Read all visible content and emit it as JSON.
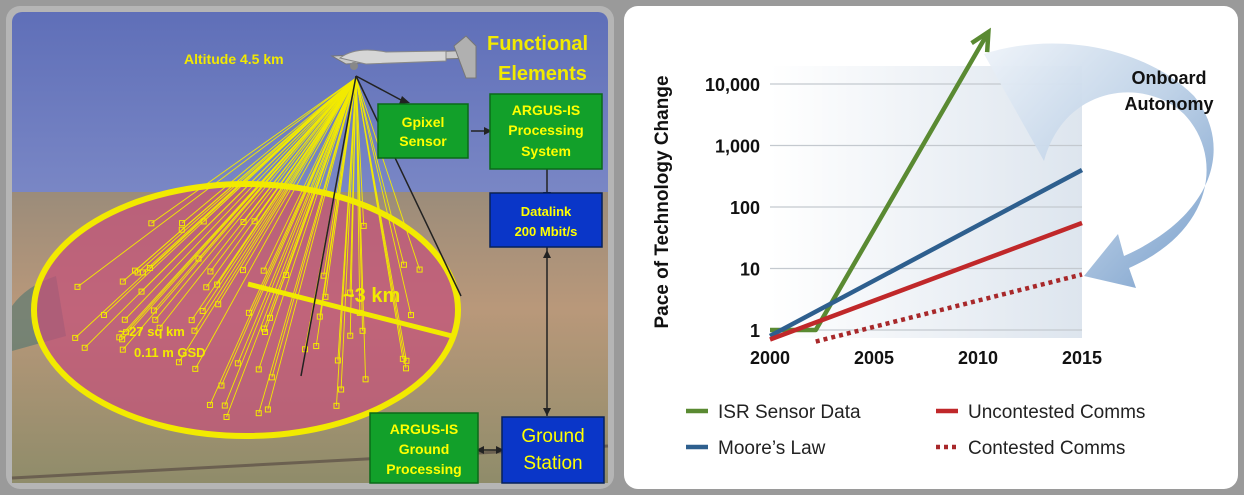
{
  "left": {
    "altitude_label": "Altitude 4.5 km",
    "functional_elements_line1": "Functional",
    "functional_elements_line2": "Elements",
    "gpixel_line1": "Gpixel",
    "gpixel_line2": "Sensor",
    "argus_processing_line1": "ARGUS-IS",
    "argus_processing_line2": "Processing",
    "argus_processing_line3": "System",
    "datalink_line1": "Datalink",
    "datalink_line2": "200 Mbit/s",
    "ground_processing_line1": "ARGUS-IS",
    "ground_processing_line2": "Ground",
    "ground_processing_line3": "Processing",
    "ground_station_line1": "Ground",
    "ground_station_line2": "Station",
    "radius_label": "~3 km",
    "area_label": "~ 27 sq km",
    "gsd_label": "0.11 m GSD",
    "colors": {
      "sky": "#6f7fc0",
      "ground": "#b99a7a",
      "coverage": "#c4507a",
      "ellipse": "#f2ea00",
      "green_box": "#12a02a",
      "blue_box": "#0a36c8"
    }
  },
  "chart_data": {
    "type": "line",
    "ylabel": "Pace of Technology Change",
    "xlabel": "",
    "y_scale": "log",
    "x_ticks": [
      "2000",
      "2005",
      "2010",
      "2015"
    ],
    "y_ticks": [
      "1",
      "10",
      "100",
      "1,000",
      "10,000"
    ],
    "xlim": [
      2000,
      2015
    ],
    "grid": true,
    "legend_position": "bottom",
    "annotation": "Onboard Autonomy",
    "series": [
      {
        "name": "ISR Sensor Data",
        "color": "#5a8a32",
        "style": "solid",
        "arrow": true,
        "x": [
          2000,
          2002.2,
          2010.5
        ],
        "y": [
          1,
          1,
          70000
        ]
      },
      {
        "name": "Moore’s Law",
        "color": "#2e5f8e",
        "style": "solid",
        "x": [
          2000,
          2015
        ],
        "y": [
          0.8,
          400
        ]
      },
      {
        "name": "Uncontested Comms",
        "color": "#c0282a",
        "style": "solid",
        "x": [
          2000,
          2015
        ],
        "y": [
          0.7,
          55
        ]
      },
      {
        "name": "Contested Comms",
        "color": "#a8282a",
        "style": "dotted",
        "x": [
          2002.2,
          2015
        ],
        "y": [
          0.65,
          8
        ]
      }
    ]
  }
}
